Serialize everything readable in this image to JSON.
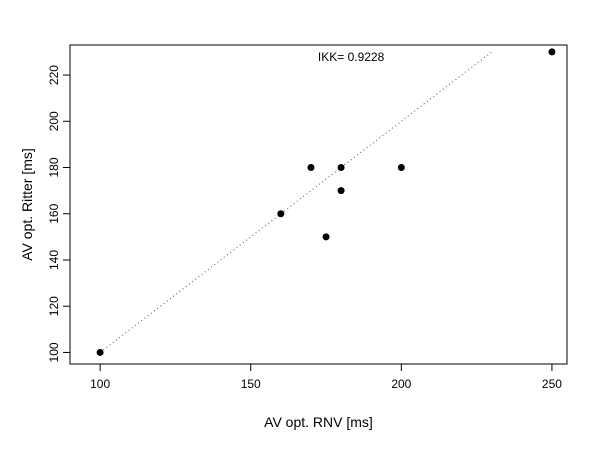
{
  "chart_data": {
    "type": "scatter",
    "xlabel": "AV opt. RNV [ms]",
    "ylabel": "AV opt. Ritter [ms]",
    "xlim": [
      90,
      255
    ],
    "ylim": [
      95,
      233
    ],
    "xticks": [
      100,
      150,
      200,
      250
    ],
    "yticks": [
      100,
      120,
      140,
      160,
      180,
      200,
      220
    ],
    "grid": false,
    "points": [
      {
        "x": 100,
        "y": 100
      },
      {
        "x": 160,
        "y": 160
      },
      {
        "x": 170,
        "y": 180
      },
      {
        "x": 175,
        "y": 150
      },
      {
        "x": 180,
        "y": 180
      },
      {
        "x": 180,
        "y": 170
      },
      {
        "x": 200,
        "y": 180
      },
      {
        "x": 250,
        "y": 230
      }
    ],
    "reference_line": {
      "from": [
        100,
        100
      ],
      "to": [
        230,
        230
      ],
      "style": "dotted"
    },
    "annotation": {
      "text": "IKK= 0.9228",
      "x": 180,
      "y": 227
    }
  }
}
